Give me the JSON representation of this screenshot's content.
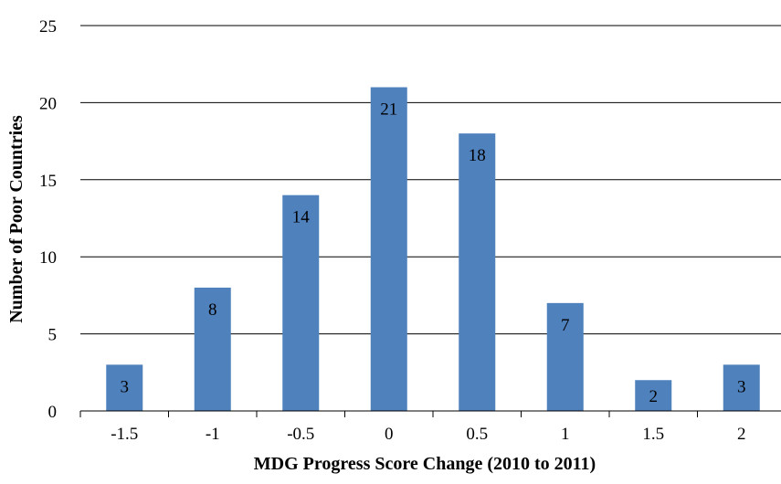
{
  "chart_data": {
    "type": "bar",
    "title": "",
    "xlabel": "MDG Progress Score Change (2010 to 2011)",
    "ylabel": "Number of Poor Countries",
    "categories": [
      "-1.5",
      "-1",
      "-0.5",
      "0",
      "0.5",
      "1",
      "1.5",
      "2"
    ],
    "values": [
      3,
      8,
      14,
      21,
      18,
      7,
      2,
      3
    ],
    "data_labels": [
      "3",
      "8",
      "14",
      "21",
      "18",
      "7",
      "2",
      "3"
    ],
    "ylim": [
      0,
      25
    ],
    "yticks": [
      "0",
      "5",
      "10",
      "15",
      "20",
      "25"
    ],
    "grid": true,
    "legend": "none",
    "bar_color": "#4f81bd"
  }
}
